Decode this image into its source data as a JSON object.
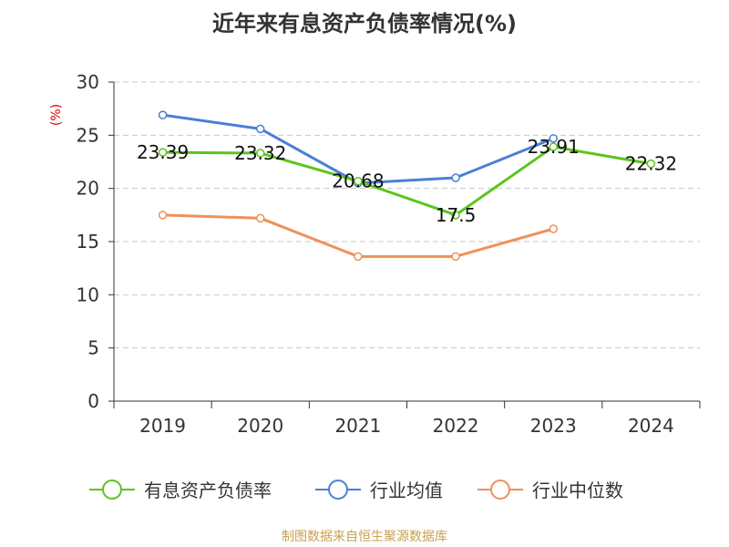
{
  "title": "近年来有息资产负债率情况(%)",
  "source": "制图数据来自恒生聚源数据库",
  "chart_data": {
    "type": "line",
    "title": "近年来有息资产负债率情况(%)",
    "ylabel": "(%)",
    "xlabel": "",
    "categories": [
      "2019",
      "2020",
      "2021",
      "2022",
      "2023",
      "2024"
    ],
    "ylim": [
      0,
      30
    ],
    "yticks": [
      0,
      5,
      10,
      15,
      20,
      25,
      30
    ],
    "grid": true,
    "legend_position": "bottom",
    "series": [
      {
        "name": "有息资产负债率",
        "color": "#5cc41e",
        "values": [
          23.39,
          23.32,
          20.68,
          17.5,
          23.91,
          22.32
        ],
        "labels": [
          "23.39",
          "23.32",
          "20.68",
          "17.5",
          "23.91",
          "22.32"
        ]
      },
      {
        "name": "行业均值",
        "color": "#4a7fd6",
        "values": [
          26.9,
          25.6,
          20.5,
          21.0,
          24.7,
          null
        ]
      },
      {
        "name": "行业中位数",
        "color": "#f0905a",
        "values": [
          17.5,
          17.2,
          13.6,
          13.6,
          16.2,
          null
        ]
      }
    ]
  }
}
